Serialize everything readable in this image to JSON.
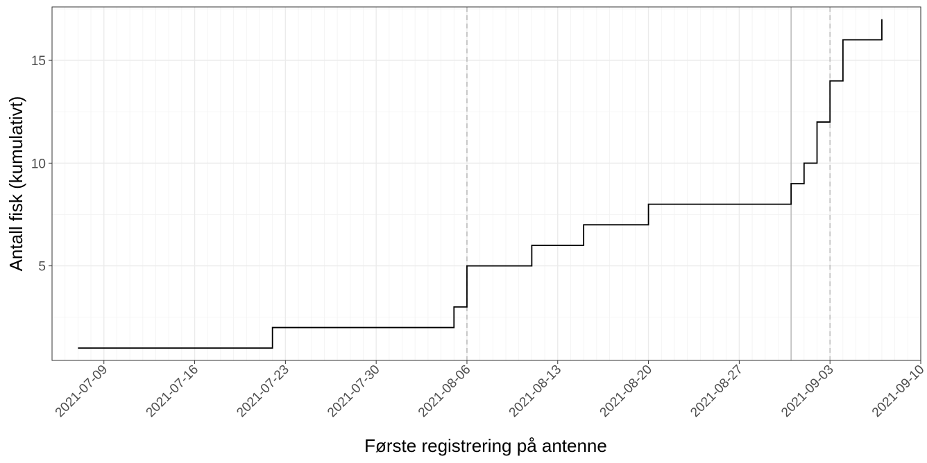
{
  "chart_data": {
    "type": "line",
    "step": true,
    "xlabel": "Første registrering på antenne",
    "ylabel": "Antall fisk (kumulativt)",
    "title": "",
    "x_type": "date",
    "xlim": [
      "2021-07-05",
      "2021-09-10"
    ],
    "ylim": [
      0.4,
      17.6
    ],
    "x_ticks": [
      "2021-07-09",
      "2021-07-16",
      "2021-07-23",
      "2021-07-30",
      "2021-08-06",
      "2021-08-13",
      "2021-08-20",
      "2021-08-27",
      "2021-09-03",
      "2021-09-10"
    ],
    "y_ticks": [
      5,
      10,
      15
    ],
    "grid": true,
    "legend": "none",
    "series": [
      {
        "color": "#000000",
        "points": [
          {
            "x": "2021-07-07",
            "y": 1
          },
          {
            "x": "2021-07-22",
            "y": 2
          },
          {
            "x": "2021-08-05",
            "y": 3
          },
          {
            "x": "2021-08-06",
            "y": 4
          },
          {
            "x": "2021-08-06",
            "y": 5
          },
          {
            "x": "2021-08-11",
            "y": 6
          },
          {
            "x": "2021-08-15",
            "y": 7
          },
          {
            "x": "2021-08-20",
            "y": 8
          },
          {
            "x": "2021-08-31",
            "y": 9
          },
          {
            "x": "2021-09-01",
            "y": 10
          },
          {
            "x": "2021-09-02",
            "y": 12
          },
          {
            "x": "2021-09-03",
            "y": 14
          },
          {
            "x": "2021-09-04",
            "y": 16
          },
          {
            "x": "2021-09-07",
            "y": 17
          }
        ]
      }
    ],
    "reference_lines": [
      {
        "x": "2021-08-06",
        "style": "dashed",
        "color": "#bdbdbd"
      },
      {
        "x": "2021-08-31",
        "style": "solid",
        "color": "#bdbdbd"
      },
      {
        "x": "2021-09-03",
        "style": "dashed",
        "color": "#bdbdbd"
      }
    ]
  }
}
